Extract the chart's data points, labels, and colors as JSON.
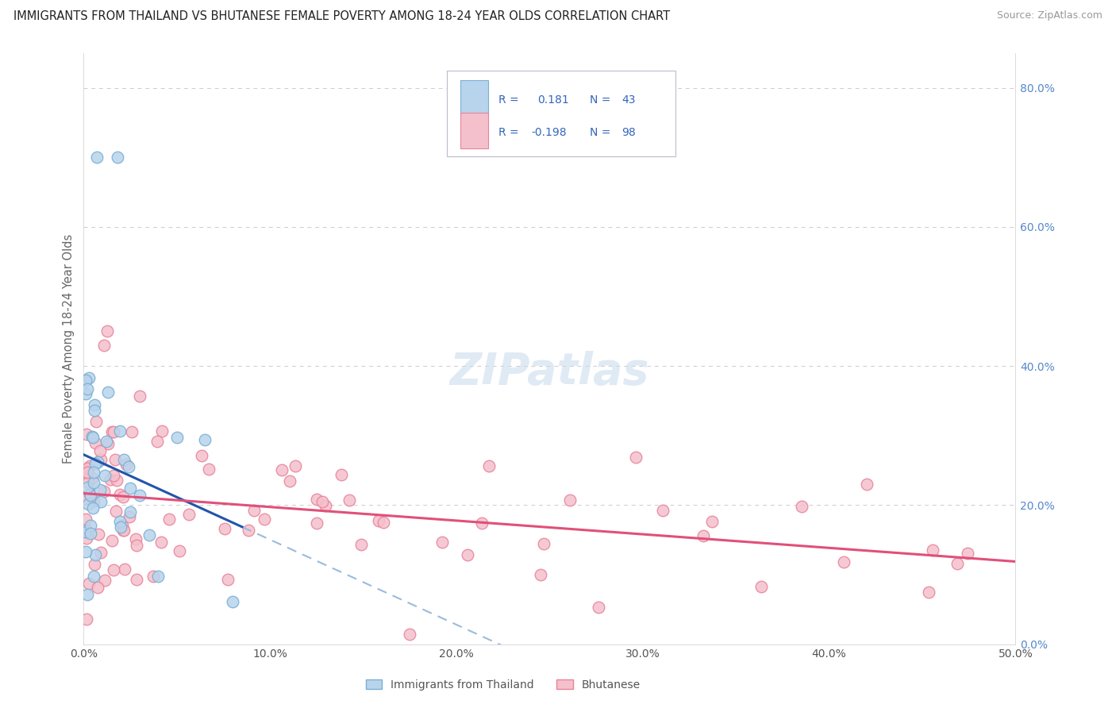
{
  "title": "IMMIGRANTS FROM THAILAND VS BHUTANESE FEMALE POVERTY AMONG 18-24 YEAR OLDS CORRELATION CHART",
  "source": "Source: ZipAtlas.com",
  "ylabel": "Female Poverty Among 18-24 Year Olds",
  "xlim": [
    0.0,
    0.5
  ],
  "ylim": [
    0.0,
    0.85
  ],
  "r_thailand": 0.181,
  "n_thailand": 43,
  "r_bhutanese": -0.198,
  "n_bhutanese": 98,
  "thailand_circle_color": "#7BAFD4",
  "thailand_fill": "#B8D4EC",
  "bhutanese_circle_color": "#E8839A",
  "bhutanese_fill": "#F4C0CC",
  "trend_thailand_solid": "#2255AA",
  "trend_thailand_dash": "#99BBDD",
  "trend_bhutanese": "#E0507A",
  "background_color": "#FFFFFF",
  "grid_color": "#CCCCCC",
  "right_axis_color": "#5588CC",
  "watermark": "ZIPatlas",
  "legend_text_color": "#3366BB",
  "legend_r_color": "#222222"
}
